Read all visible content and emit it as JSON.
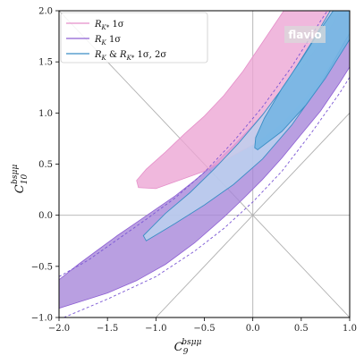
{
  "chart_data": {
    "type": "area",
    "xlabel": "C_9^{bsμμ}",
    "ylabel": "C_10^{bsμμ}",
    "xlabel_main": "C",
    "xlabel_sub": "9",
    "xlabel_sup": "bsμμ",
    "ylabel_main": "C",
    "ylabel_sub": "10",
    "ylabel_sup": "bsμμ",
    "xlim": [
      -2.0,
      1.0
    ],
    "ylim": [
      -1.0,
      2.0
    ],
    "x_ticks": [
      -2.0,
      -1.5,
      -1.0,
      -0.5,
      0.0,
      0.5,
      1.0
    ],
    "y_ticks": [
      -1.0,
      -0.5,
      0.0,
      0.5,
      1.0,
      1.5,
      2.0
    ],
    "x_tick_labels": [
      "−2.0",
      "−1.5",
      "−1.0",
      "−0.5",
      "0.0",
      "0.5",
      "1.0"
    ],
    "y_tick_labels": [
      "−1.0",
      "−0.5",
      "0.0",
      "0.5",
      "1.0",
      "1.5",
      "2.0"
    ],
    "grid": false,
    "reference_lines": [
      {
        "points": [
          [
            0.0,
            -1.0
          ],
          [
            0.0,
            2.0
          ]
        ]
      },
      {
        "points": [
          [
            -2.0,
            0.0
          ],
          [
            1.0,
            0.0
          ]
        ]
      },
      {
        "points": [
          [
            -1.0,
            -1.0
          ],
          [
            1.0,
            1.0
          ]
        ]
      },
      {
        "points": [
          [
            -2.0,
            2.0
          ],
          [
            1.0,
            -1.0
          ]
        ]
      }
    ],
    "legend_position": "top-left",
    "watermark": "flavio",
    "series": [
      {
        "name": "R_{K*} 1σ",
        "label_main": "R",
        "label_sub": "K*",
        "label_rest": " 1σ",
        "color": "#e58fc9",
        "fill": "#eca4d4",
        "opacity": 0.78,
        "points": [
          [
            -1.2,
            0.34
          ],
          [
            -1.18,
            0.27
          ],
          [
            -1.0,
            0.26
          ],
          [
            -0.5,
            0.43
          ],
          [
            0.0,
            0.69
          ],
          [
            0.3,
            0.9
          ],
          [
            0.6,
            1.22
          ],
          [
            0.9,
            1.62
          ],
          [
            1.0,
            1.79
          ],
          [
            1.0,
            2.0
          ],
          [
            0.32,
            2.0
          ],
          [
            0.1,
            1.69
          ],
          [
            -0.1,
            1.41
          ],
          [
            -0.3,
            1.17
          ],
          [
            -0.5,
            0.97
          ],
          [
            -0.7,
            0.8
          ],
          [
            -0.9,
            0.62
          ],
          [
            -1.1,
            0.45
          ]
        ]
      },
      {
        "name": "R_K 1σ",
        "label_main": "R",
        "label_sub": "K",
        "label_rest": " 1σ",
        "color": "#8d5fd3",
        "fill": "#a887d9",
        "opacity": 0.8,
        "points": [
          [
            -2.0,
            -0.63
          ],
          [
            -1.8,
            -0.48
          ],
          [
            -1.6,
            -0.34
          ],
          [
            -1.4,
            -0.2
          ],
          [
            -1.2,
            -0.07
          ],
          [
            -1.0,
            0.06
          ],
          [
            -0.8,
            0.19
          ],
          [
            -0.6,
            0.34
          ],
          [
            -0.4,
            0.5
          ],
          [
            -0.2,
            0.68
          ],
          [
            0.0,
            0.88
          ],
          [
            0.2,
            1.09
          ],
          [
            0.4,
            1.31
          ],
          [
            0.6,
            1.56
          ],
          [
            0.8,
            1.83
          ],
          [
            0.9,
            2.0
          ],
          [
            1.0,
            2.0
          ],
          [
            1.0,
            1.45
          ],
          [
            0.9,
            1.3
          ],
          [
            0.7,
            1.02
          ],
          [
            0.5,
            0.79
          ],
          [
            0.3,
            0.56
          ],
          [
            0.1,
            0.35
          ],
          [
            -0.1,
            0.16
          ],
          [
            -0.3,
            -0.02
          ],
          [
            -0.6,
            -0.27
          ],
          [
            -0.9,
            -0.48
          ],
          [
            -1.2,
            -0.64
          ],
          [
            -1.5,
            -0.76
          ],
          [
            -1.8,
            -0.85
          ],
          [
            -2.0,
            -0.91
          ]
        ]
      },
      {
        "name": "R_K & R_{K*} 1σ, 2σ",
        "label_main": "R",
        "label_sub": "K",
        "label_mid": " & ",
        "label_main2": "R",
        "label_sub2": "K*",
        "label_rest": " 1σ, 2σ",
        "color": "#3a8ec5",
        "fill_outer": "#bcd8f0",
        "fill_inner": "#74b5e3",
        "outer_points": [
          [
            -1.13,
            -0.2
          ],
          [
            -1.1,
            -0.25
          ],
          [
            -0.8,
            -0.08
          ],
          [
            -0.5,
            0.1
          ],
          [
            -0.2,
            0.3
          ],
          [
            0.1,
            0.55
          ],
          [
            0.4,
            0.88
          ],
          [
            0.7,
            1.28
          ],
          [
            0.95,
            1.7
          ],
          [
            1.0,
            1.78
          ],
          [
            1.0,
            2.0
          ],
          [
            0.8,
            2.0
          ],
          [
            0.6,
            1.68
          ],
          [
            0.35,
            1.3
          ],
          [
            0.1,
            0.98
          ],
          [
            -0.15,
            0.7
          ],
          [
            -0.4,
            0.45
          ],
          [
            -0.65,
            0.22
          ],
          [
            -0.9,
            0.02
          ]
        ],
        "inner_points": [
          [
            0.02,
            0.66
          ],
          [
            0.05,
            0.64
          ],
          [
            0.3,
            0.82
          ],
          [
            0.55,
            1.08
          ],
          [
            0.75,
            1.34
          ],
          [
            1.0,
            1.72
          ],
          [
            1.0,
            2.0
          ],
          [
            0.83,
            2.0
          ],
          [
            0.7,
            1.82
          ],
          [
            0.5,
            1.52
          ],
          [
            0.3,
            1.24
          ],
          [
            0.12,
            0.95
          ],
          [
            0.03,
            0.76
          ]
        ]
      }
    ],
    "dashed_curves": [
      {
        "color": "#7a56d4",
        "points": [
          [
            -2.0,
            -0.6
          ],
          [
            -1.7,
            -0.44
          ],
          [
            -1.4,
            -0.24
          ],
          [
            -1.1,
            -0.04
          ],
          [
            -0.8,
            0.17
          ],
          [
            -0.5,
            0.42
          ],
          [
            -0.2,
            0.72
          ],
          [
            0.1,
            1.06
          ],
          [
            0.4,
            1.45
          ],
          [
            0.7,
            1.9
          ],
          [
            0.77,
            2.0
          ]
        ]
      },
      {
        "color": "#7a56d4",
        "points": [
          [
            -1.95,
            -1.0
          ],
          [
            -1.5,
            -0.82
          ],
          [
            -1.0,
            -0.6
          ],
          [
            -0.6,
            -0.35
          ],
          [
            -0.3,
            -0.13
          ],
          [
            0.0,
            0.13
          ],
          [
            0.3,
            0.43
          ],
          [
            0.6,
            0.8
          ],
          [
            0.9,
            1.2
          ],
          [
            1.0,
            1.35
          ]
        ]
      }
    ]
  }
}
